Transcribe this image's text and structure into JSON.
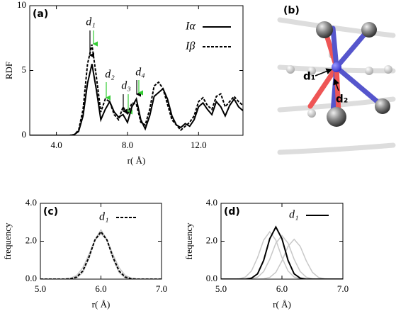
{
  "chart_data": [
    {
      "type": "line",
      "panel_label": "(a)",
      "x_label": "r( Å)",
      "y_label": "RDF",
      "x": [
        2.5,
        2.75,
        3,
        3.25,
        3.5,
        3.75,
        4,
        4.25,
        4.5,
        4.75,
        5,
        5.25,
        5.5,
        5.75,
        6,
        6.25,
        6.5,
        6.75,
        7,
        7.25,
        7.5,
        7.75,
        8,
        8.25,
        8.5,
        8.75,
        9,
        9.25,
        9.5,
        9.75,
        10,
        10.25,
        10.5,
        10.75,
        11,
        11.25,
        11.5,
        11.75,
        12,
        12.25,
        12.5,
        12.75,
        13,
        13.25,
        13.5,
        13.75,
        14,
        14.25,
        14.5
      ],
      "series": [
        {
          "name": "Iα",
          "color": "#000000",
          "dash": false,
          "values": [
            0,
            0,
            0,
            0,
            0,
            0,
            0,
            0,
            0,
            0,
            0.05,
            0.3,
            1.5,
            4.0,
            5.5,
            3.5,
            1.2,
            2.0,
            2.6,
            1.8,
            1.4,
            1.6,
            1.0,
            2.2,
            2.8,
            1.2,
            0.5,
            1.5,
            3.0,
            3.3,
            3.6,
            2.8,
            1.5,
            0.8,
            0.6,
            0.9,
            0.7,
            1.2,
            2.2,
            2.5,
            2.0,
            1.6,
            2.6,
            2.2,
            1.5,
            2.3,
            2.8,
            2.2,
            1.9
          ]
        },
        {
          "name": "Iβ",
          "color": "#000000",
          "dash": true,
          "values": [
            0,
            0,
            0,
            0,
            0,
            0,
            0,
            0,
            0,
            0,
            0.05,
            0.4,
            2.0,
            5.5,
            7.0,
            4.5,
            1.8,
            2.8,
            2.6,
            1.6,
            1.2,
            2.2,
            1.6,
            2.5,
            2.4,
            1.0,
            0.8,
            2.0,
            3.8,
            4.1,
            3.6,
            2.4,
            1.2,
            0.8,
            0.4,
            0.7,
            1.0,
            1.5,
            2.6,
            2.9,
            2.3,
            2.0,
            3.0,
            3.2,
            2.2,
            2.6,
            3.0,
            2.6,
            2.3
          ]
        }
      ],
      "annotations": [
        "d₁",
        "d₂",
        "d₃",
        "d₄"
      ],
      "xlim": [
        2.5,
        14.5
      ],
      "xticks": [
        {
          "value": 4,
          "label": "4.0"
        },
        {
          "value": 8,
          "label": "8.0"
        },
        {
          "value": 12,
          "label": "12.0"
        }
      ],
      "ylim": [
        0,
        10
      ],
      "yticks": [
        0,
        5,
        10
      ],
      "legend": "upper right"
    },
    {
      "type": "line",
      "panel_label": "(c)",
      "x_label": "r( Å)",
      "y_label": "frequency",
      "x": [
        5.0,
        5.1,
        5.2,
        5.3,
        5.4,
        5.5,
        5.6,
        5.7,
        5.8,
        5.9,
        6.0,
        6.1,
        6.2,
        6.3,
        6.4,
        6.5,
        6.6,
        6.7,
        6.8,
        6.9,
        7.0
      ],
      "series": [
        {
          "color": "#c8c8c8",
          "dash": false,
          "values": [
            0,
            0,
            0,
            0,
            0.01,
            0.05,
            0.2,
            0.6,
            1.29,
            2.06,
            2.4,
            2.06,
            1.29,
            0.6,
            0.2,
            0.05,
            0.01,
            0,
            0,
            0,
            0
          ]
        },
        {
          "color": "#c8c8c8",
          "dash": false,
          "values": [
            0,
            0,
            0,
            0,
            0,
            0.01,
            0.07,
            0.35,
            1.07,
            2.08,
            2.6,
            2.08,
            1.07,
            0.35,
            0.07,
            0.01,
            0,
            0,
            0,
            0,
            0
          ]
        },
        {
          "name": "d₁",
          "color": "#000000",
          "dash": true,
          "values": [
            0,
            0,
            0,
            0,
            0,
            0.02,
            0.11,
            0.43,
            1.14,
            2.06,
            2.5,
            2.06,
            1.14,
            0.43,
            0.11,
            0.02,
            0,
            0,
            0,
            0,
            0
          ]
        }
      ],
      "xlim": [
        5,
        7
      ],
      "xticks": [
        {
          "value": 5,
          "label": "5.0"
        },
        {
          "value": 6,
          "label": "6.0"
        },
        {
          "value": 7,
          "label": "7.0"
        }
      ],
      "ylim": [
        0,
        4
      ],
      "yticks": [
        {
          "value": 0,
          "label": "0.0"
        },
        {
          "value": 2,
          "label": "2.0"
        },
        {
          "value": 4,
          "label": "4.0"
        }
      ],
      "legend": "upper right"
    },
    {
      "type": "line",
      "panel_label": "(d)",
      "x_label": "r( Å)",
      "y_label": "frequency",
      "x": [
        5.0,
        5.1,
        5.2,
        5.3,
        5.4,
        5.5,
        5.6,
        5.7,
        5.8,
        5.9,
        6.0,
        6.1,
        6.2,
        6.3,
        6.4,
        6.5,
        6.6,
        6.7,
        6.8,
        6.9,
        7.0
      ],
      "series": [
        {
          "color": "#c8c8c8",
          "dash": false,
          "values": [
            0,
            0,
            0,
            0.02,
            0.11,
            0.43,
            1.14,
            2.06,
            2.5,
            2.06,
            1.14,
            0.43,
            0.11,
            0.02,
            0,
            0,
            0,
            0,
            0,
            0,
            0
          ]
        },
        {
          "color": "#c8c8c8",
          "dash": false,
          "values": [
            0,
            0,
            0,
            0,
            0,
            0.02,
            0.1,
            0.4,
            1.05,
            1.9,
            2.3,
            1.9,
            1.05,
            0.4,
            0.1,
            0.02,
            0,
            0,
            0,
            0,
            0
          ]
        },
        {
          "color": "#c8c8c8",
          "dash": false,
          "values": [
            0,
            0,
            0,
            0,
            0,
            0,
            0,
            0.02,
            0.09,
            0.36,
            0.96,
            1.73,
            2.1,
            1.73,
            0.96,
            0.36,
            0.09,
            0.02,
            0,
            0,
            0
          ]
        },
        {
          "name": "d₁",
          "color": "#000000",
          "dash": false,
          "values": [
            0,
            0,
            0,
            0,
            0,
            0.05,
            0.28,
            0.99,
            2.13,
            2.75,
            2.13,
            0.99,
            0.28,
            0.05,
            0,
            0,
            0,
            0,
            0,
            0,
            0
          ]
        }
      ],
      "xlim": [
        5,
        7
      ],
      "xticks": [
        {
          "value": 5,
          "label": "5.0"
        },
        {
          "value": 6,
          "label": "6.0"
        },
        {
          "value": 7,
          "label": "7.0"
        }
      ],
      "ylim": [
        0,
        4
      ],
      "yticks": [
        {
          "value": 0,
          "label": "0.0"
        },
        {
          "value": 2,
          "label": "2.0"
        },
        {
          "value": 4,
          "label": "4.0"
        }
      ],
      "legend": "upper right"
    }
  ],
  "image_panel": {
    "panel_label": "(b)",
    "annotations": [
      "d₁",
      "d₂"
    ]
  }
}
